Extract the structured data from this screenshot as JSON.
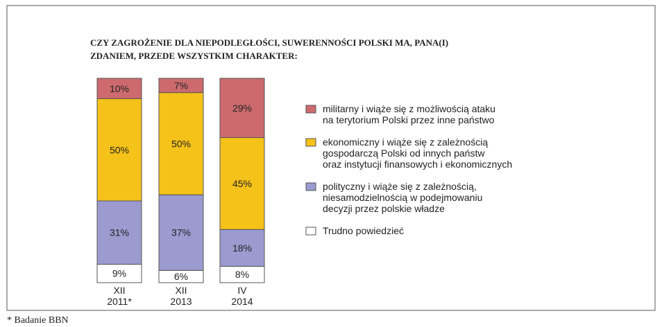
{
  "chart_data": {
    "type": "stacked_bar",
    "title": "CZY ZAGROŻENIE DLA NIEPODLEGŁOŚCI, SUWERENNOŚCI POLSKI MA, PANA(I)\nZDANIEM, PRZEDE WSZYSTKIM CHARAKTER:",
    "categories": [
      "XII\n2011*",
      "XII\n2013",
      "IV\n2014"
    ],
    "series": [
      {
        "name": "Trudno powiedzieć",
        "color": "#ffffff",
        "values": [
          9,
          6,
          8
        ],
        "value_labels": [
          "9%",
          "6%",
          "8%"
        ]
      },
      {
        "name": "polityczny i wiąże się z zależnością,\nniesamodzielnością w podejmowaniu\ndecyzji przez polskie władze",
        "color": "#9b9bd0",
        "values": [
          31,
          37,
          18
        ],
        "value_labels": [
          "31%",
          "37%",
          "18%"
        ]
      },
      {
        "name": "ekonomiczny i wiąże się z zależnością\ngospodarczą Polski od innych państw\noraz instytucji finansowych i ekonomicznych",
        "color": "#f5c21a",
        "values": [
          50,
          50,
          45
        ],
        "value_labels": [
          "50%",
          "50%",
          "45%"
        ]
      },
      {
        "name": "militarny i wiąże się z możliwością ataku\nna terytorium Polski przez inne państwo",
        "color": "#cc6a6e",
        "values": [
          10,
          7,
          29
        ],
        "value_labels": [
          "10%",
          "7%",
          "29%"
        ]
      }
    ],
    "footnote": "* Badanie BBN"
  }
}
